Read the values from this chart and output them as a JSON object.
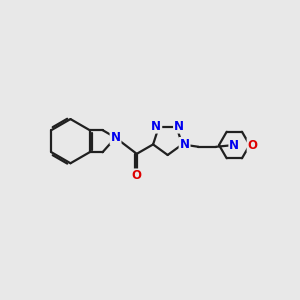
{
  "bg_color": "#e8e8e8",
  "bond_color": "#202020",
  "N_color": "#0000ee",
  "O_color": "#dd0000",
  "bond_width": 1.6,
  "font_size_atom": 8.5,
  "fig_width": 3.0,
  "fig_height": 3.0,
  "dpi": 100,
  "xlim": [
    0,
    10
  ],
  "ylim": [
    0,
    10
  ]
}
